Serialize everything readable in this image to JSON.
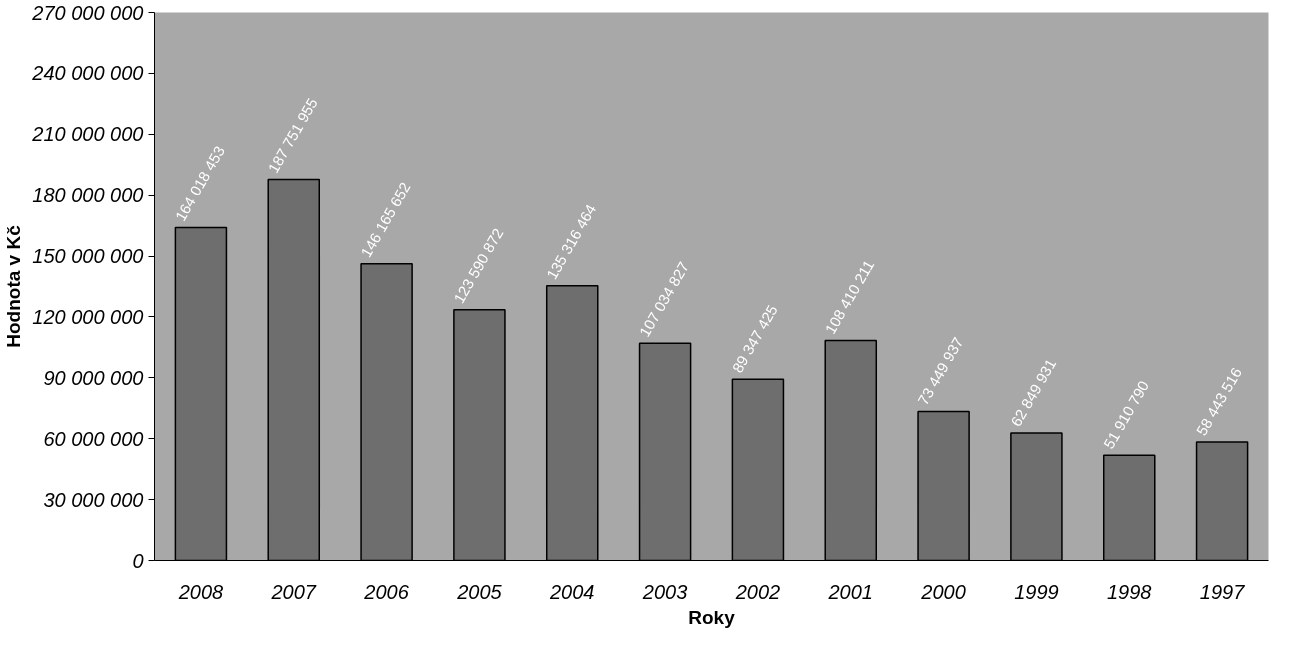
{
  "chart_data": {
    "type": "bar",
    "xlabel": "Roky",
    "ylabel": "Hodnota v Kč",
    "categories": [
      "2008",
      "2007",
      "2006",
      "2005",
      "2004",
      "2003",
      "2002",
      "2001",
      "2000",
      "1999",
      "1998",
      "1997"
    ],
    "values": [
      164018453,
      187751955,
      146165652,
      123590872,
      135316464,
      107034827,
      89347425,
      108410211,
      73449937,
      62849931,
      51910790,
      58443516
    ],
    "value_labels": [
      "164 018 453",
      "187 751 955",
      "146 165 652",
      "123 590 872",
      "135 316 464",
      "107 034 827",
      "89 347 425",
      "108 410 211",
      "73 449 937",
      "62 849 931",
      "51 910 790",
      "58 443 516"
    ],
    "color": "#6e6e6e",
    "ylim": [
      0,
      270000000
    ],
    "yticks": [
      {
        "value": 0,
        "label": "0"
      },
      {
        "value": 30000000,
        "label": "30 000 000"
      },
      {
        "value": 60000000,
        "label": "60 000 000"
      },
      {
        "value": 90000000,
        "label": "90 000 000"
      },
      {
        "value": 120000000,
        "label": "120 000 000"
      },
      {
        "value": 150000000,
        "label": "150 000 000"
      },
      {
        "value": 180000000,
        "label": "180 000 000"
      },
      {
        "value": 210000000,
        "label": "210 000 000"
      },
      {
        "value": 240000000,
        "label": "240 000 000"
      },
      {
        "value": 270000000,
        "label": "270 000 000"
      }
    ],
    "grid": false
  }
}
